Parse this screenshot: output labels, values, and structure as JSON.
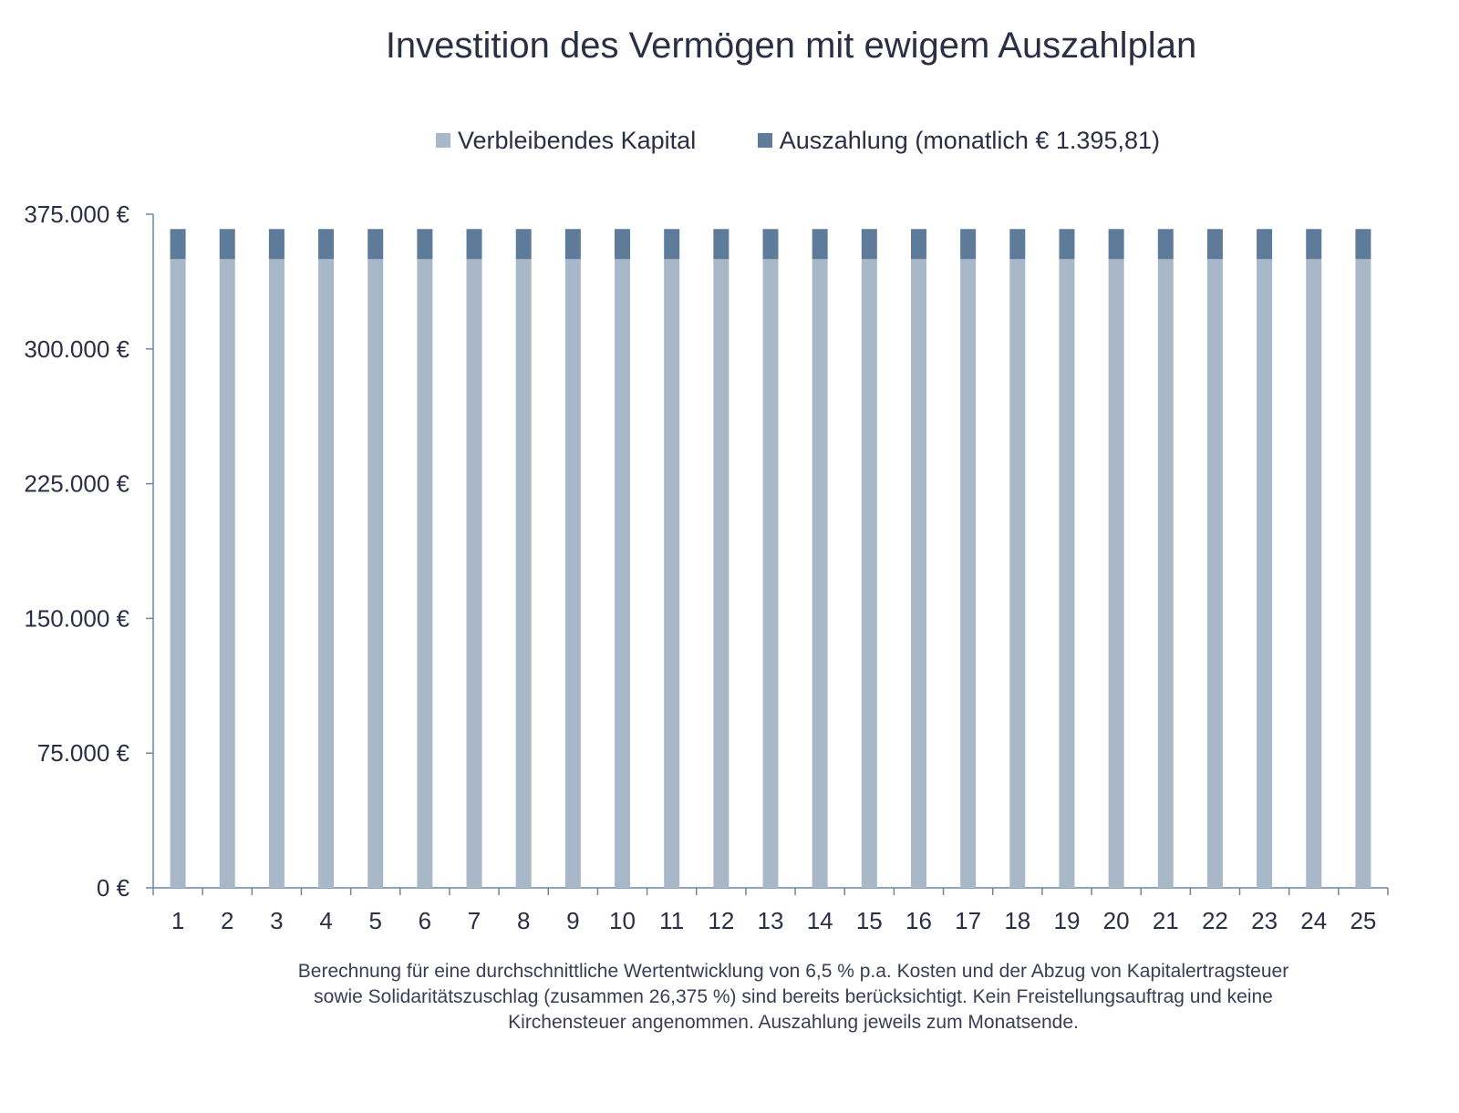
{
  "chart_data": {
    "type": "bar",
    "stacked": true,
    "title": "Investition des Vermögen mit ewigem Auszahlplan",
    "categories": [
      "1",
      "2",
      "3",
      "4",
      "5",
      "6",
      "7",
      "8",
      "9",
      "10",
      "11",
      "12",
      "13",
      "14",
      "15",
      "16",
      "17",
      "18",
      "19",
      "20",
      "21",
      "22",
      "23",
      "24",
      "25"
    ],
    "series": [
      {
        "name": "Verbleibendes Kapital",
        "color": "#a8b8c9",
        "values": [
          350000,
          350000,
          350000,
          350000,
          350000,
          350000,
          350000,
          350000,
          350000,
          350000,
          350000,
          350000,
          350000,
          350000,
          350000,
          350000,
          350000,
          350000,
          350000,
          350000,
          350000,
          350000,
          350000,
          350000,
          350000
        ]
      },
      {
        "name": "Auszahlung (monatlich € 1.395,81)",
        "color": "#5e7b99",
        "values": [
          16749.72,
          16749.72,
          16749.72,
          16749.72,
          16749.72,
          16749.72,
          16749.72,
          16749.72,
          16749.72,
          16749.72,
          16749.72,
          16749.72,
          16749.72,
          16749.72,
          16749.72,
          16749.72,
          16749.72,
          16749.72,
          16749.72,
          16749.72,
          16749.72,
          16749.72,
          16749.72,
          16749.72,
          16749.72
        ]
      }
    ],
    "ylim": [
      0,
      375000
    ],
    "yticks": [
      0,
      75000,
      150000,
      225000,
      300000,
      375000
    ],
    "ytick_labels": [
      "0 €",
      "75.000 €",
      "150.000 €",
      "225.000 €",
      "300.000 €",
      "375.000 €"
    ],
    "xlabel": "",
    "ylabel": "",
    "grid": false,
    "legend_position": "top",
    "axis_color": "#6b86a3"
  },
  "footnote": "Berechnung für eine durchschnittliche Wertentwicklung von 6,5 % p.a. Kosten und der Abzug von Kapitalertragsteuer sowie Solidaritätszuschlag (zusammen 26,375 %) sind bereits berücksichtigt. Kein Freistellungsauftrag und keine Kirchensteuer angenommen. Auszahlung jeweils zum Monatsende."
}
